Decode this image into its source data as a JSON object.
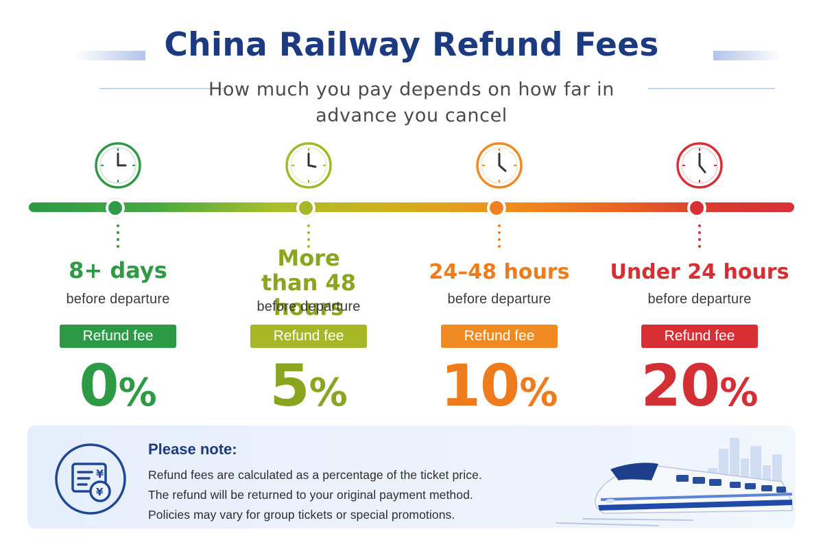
{
  "header": {
    "title": "China Railway Refund Fees",
    "subtitle": "How much you pay depends on how far in advance you cancel"
  },
  "tiers": [
    {
      "period": "8+ days",
      "before": "before departure",
      "badge": "Refund fee",
      "percent": "0",
      "sign": "%",
      "color": "#2e9a46",
      "badge_color": "#2e9a46"
    },
    {
      "period": "More than 48 hours",
      "before": "before departure",
      "badge": "Refund fee",
      "percent": "5",
      "sign": "%",
      "color": "#8aa51f",
      "badge_color": "#a5b726"
    },
    {
      "period": "24–48 hours",
      "before": "before departure",
      "badge": "Refund fee",
      "percent": "10",
      "sign": "%",
      "color": "#ee7c1d",
      "badge_color": "#ef8a22"
    },
    {
      "period": "Under 24 hours",
      "before": "before departure",
      "badge": "Refund fee",
      "percent": "20",
      "sign": "%",
      "color": "#d32f34",
      "badge_color": "#d72f36"
    }
  ],
  "note": {
    "title": "Please note:",
    "lines": [
      "Refund fees are calculated as a percentage of the ticket price.",
      "The refund will be returned to your original payment method.",
      "Policies may vary for group tickets or special promotions."
    ]
  },
  "icons": {
    "tier_icon": "clock-icon",
    "note_icon": "yuan-refund-document-icon",
    "decoration": "high-speed-train-illustration"
  }
}
